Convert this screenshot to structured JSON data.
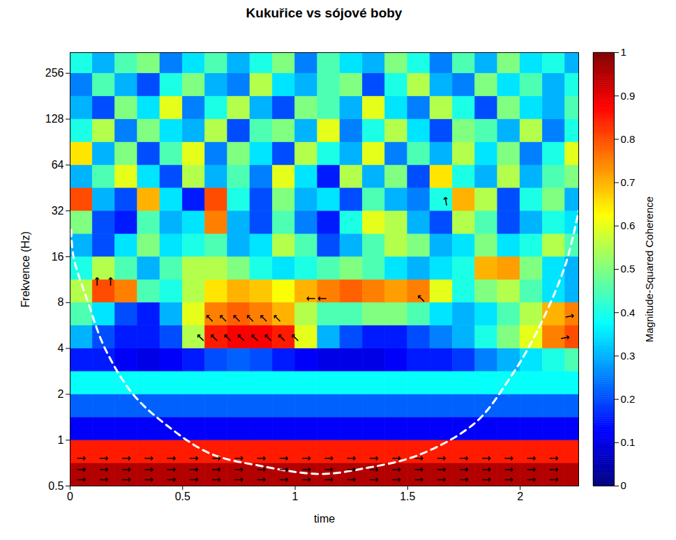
{
  "chart_data": {
    "type": "heatmap",
    "title": "Kukuřice vs sójové boby",
    "x_label": "time",
    "y_label": "Frekvence (Hz)",
    "log": "y",
    "grid": false,
    "xlim": [
      0,
      2.26
    ],
    "xticks": [
      0,
      0.5,
      1,
      1.5,
      2
    ],
    "ylim": [
      0.5,
      350
    ],
    "yticks": [
      0.5,
      1,
      2,
      4,
      8,
      16,
      32,
      64,
      128,
      256
    ],
    "colorbar": {
      "label": "Magnitude-Squared Coherence",
      "lim": [
        0,
        1
      ],
      "ticks": [
        0,
        0.1,
        0.2,
        0.3,
        0.4,
        0.5,
        0.6,
        0.7,
        0.8,
        0.9,
        1
      ]
    },
    "cells": {
      "x_edges": [
        0,
        0.1,
        0.2,
        0.3,
        0.4,
        0.5,
        0.6,
        0.7,
        0.8,
        0.9,
        1,
        1.1,
        1.2,
        1.3,
        1.4,
        1.5,
        1.6,
        1.7,
        1.8,
        1.9,
        2,
        2.1,
        2.2,
        2.3
      ],
      "y_edges": [
        0.5,
        0.707,
        1,
        1.414,
        2,
        2.83,
        4,
        5.66,
        8,
        11.3,
        16,
        22.6,
        32,
        45.3,
        64,
        90.5,
        128,
        181,
        256,
        362
      ],
      "values": [
        [
          0.95,
          0.95,
          0.95,
          0.95,
          0.95,
          0.95,
          0.95,
          0.95,
          0.95,
          0.95,
          0.95,
          0.95,
          0.95,
          0.95,
          0.95,
          0.95,
          0.95,
          0.95,
          0.95,
          0.95,
          0.95,
          0.95,
          0.95
        ],
        [
          0.85,
          0.85,
          0.85,
          0.85,
          0.85,
          0.85,
          0.85,
          0.85,
          0.85,
          0.85,
          0.85,
          0.85,
          0.85,
          0.85,
          0.85,
          0.85,
          0.85,
          0.85,
          0.85,
          0.85,
          0.85,
          0.85,
          0.85
        ],
        [
          0.12,
          0.12,
          0.12,
          0.12,
          0.12,
          0.12,
          0.12,
          0.12,
          0.12,
          0.12,
          0.12,
          0.12,
          0.12,
          0.12,
          0.12,
          0.12,
          0.12,
          0.12,
          0.12,
          0.12,
          0.12,
          0.12,
          0.12
        ],
        [
          0.22,
          0.22,
          0.22,
          0.22,
          0.22,
          0.22,
          0.22,
          0.22,
          0.22,
          0.22,
          0.22,
          0.22,
          0.22,
          0.22,
          0.22,
          0.22,
          0.22,
          0.22,
          0.22,
          0.22,
          0.22,
          0.22,
          0.22
        ],
        [
          0.38,
          0.38,
          0.38,
          0.38,
          0.38,
          0.38,
          0.38,
          0.38,
          0.38,
          0.38,
          0.38,
          0.38,
          0.38,
          0.38,
          0.38,
          0.38,
          0.38,
          0.38,
          0.38,
          0.38,
          0.38,
          0.38,
          0.38
        ],
        [
          0.15,
          0.15,
          0.12,
          0.1,
          0.12,
          0.15,
          0.2,
          0.22,
          0.2,
          0.15,
          0.12,
          0.1,
          0.1,
          0.1,
          0.12,
          0.15,
          0.15,
          0.18,
          0.25,
          0.3,
          0.35,
          0.4,
          0.45
        ],
        [
          0.3,
          0.2,
          0.15,
          0.15,
          0.2,
          0.55,
          0.85,
          0.88,
          0.88,
          0.85,
          0.6,
          0.3,
          0.2,
          0.15,
          0.15,
          0.2,
          0.25,
          0.3,
          0.4,
          0.5,
          0.6,
          0.75,
          0.8
        ],
        [
          0.45,
          0.35,
          0.2,
          0.15,
          0.3,
          0.6,
          0.75,
          0.78,
          0.75,
          0.7,
          0.55,
          0.45,
          0.45,
          0.5,
          0.5,
          0.45,
          0.35,
          0.3,
          0.35,
          0.45,
          0.55,
          0.7,
          0.75
        ],
        [
          0.55,
          0.8,
          0.75,
          0.45,
          0.4,
          0.55,
          0.65,
          0.7,
          0.68,
          0.62,
          0.7,
          0.75,
          0.78,
          0.75,
          0.72,
          0.75,
          0.6,
          0.4,
          0.5,
          0.55,
          0.45,
          0.35,
          0.3
        ],
        [
          0.4,
          0.55,
          0.45,
          0.3,
          0.45,
          0.55,
          0.55,
          0.5,
          0.4,
          0.35,
          0.4,
          0.45,
          0.5,
          0.45,
          0.35,
          0.3,
          0.35,
          0.4,
          0.7,
          0.72,
          0.5,
          0.35,
          0.3
        ],
        [
          0.3,
          0.2,
          0.35,
          0.5,
          0.35,
          0.4,
          0.45,
          0.3,
          0.35,
          0.55,
          0.45,
          0.2,
          0.3,
          0.45,
          0.55,
          0.5,
          0.3,
          0.35,
          0.5,
          0.35,
          0.4,
          0.55,
          0.45
        ],
        [
          0.5,
          0.2,
          0.15,
          0.45,
          0.3,
          0.35,
          0.75,
          0.3,
          0.2,
          0.45,
          0.25,
          0.15,
          0.4,
          0.6,
          0.55,
          0.3,
          0.2,
          0.55,
          0.45,
          0.2,
          0.3,
          0.4,
          0.35
        ],
        [
          0.8,
          0.3,
          0.2,
          0.7,
          0.35,
          0.15,
          0.8,
          0.4,
          0.2,
          0.5,
          0.3,
          0.35,
          0.2,
          0.45,
          0.3,
          0.25,
          0.4,
          0.7,
          0.55,
          0.2,
          0.4,
          0.5,
          0.3
        ],
        [
          0.3,
          0.45,
          0.6,
          0.35,
          0.2,
          0.55,
          0.3,
          0.45,
          0.25,
          0.6,
          0.35,
          0.15,
          0.55,
          0.3,
          0.5,
          0.2,
          0.65,
          0.4,
          0.3,
          0.55,
          0.3,
          0.45,
          0.5
        ],
        [
          0.65,
          0.3,
          0.5,
          0.2,
          0.45,
          0.6,
          0.25,
          0.5,
          0.35,
          0.2,
          0.55,
          0.4,
          0.3,
          0.6,
          0.25,
          0.45,
          0.3,
          0.55,
          0.35,
          0.5,
          0.25,
          0.4,
          0.6
        ],
        [
          0.4,
          0.55,
          0.25,
          0.5,
          0.35,
          0.3,
          0.55,
          0.2,
          0.45,
          0.5,
          0.3,
          0.6,
          0.25,
          0.4,
          0.55,
          0.35,
          0.2,
          0.5,
          0.45,
          0.3,
          0.55,
          0.25,
          0.4
        ],
        [
          0.3,
          0.2,
          0.5,
          0.35,
          0.6,
          0.25,
          0.4,
          0.55,
          0.3,
          0.2,
          0.5,
          0.45,
          0.3,
          0.6,
          0.35,
          0.25,
          0.55,
          0.4,
          0.2,
          0.5,
          0.35,
          0.3,
          0.45
        ],
        [
          0.25,
          0.45,
          0.3,
          0.2,
          0.4,
          0.5,
          0.3,
          0.25,
          0.55,
          0.35,
          0.3,
          0.45,
          0.5,
          0.2,
          0.4,
          0.55,
          0.3,
          0.25,
          0.5,
          0.35,
          0.45,
          0.3,
          0.4
        ],
        [
          0.4,
          0.3,
          0.45,
          0.5,
          0.25,
          0.35,
          0.45,
          0.3,
          0.4,
          0.5,
          0.25,
          0.45,
          0.35,
          0.3,
          0.5,
          0.4,
          0.25,
          0.45,
          0.3,
          0.5,
          0.35,
          0.4,
          0.3
        ]
      ]
    },
    "coi": {
      "x": [
        0.005,
        0.015,
        0.08,
        0.155,
        0.28,
        0.43,
        0.62,
        0.84,
        1.11,
        1.3,
        1.55,
        1.8,
        1.95,
        2.07,
        2.2,
        2.26
      ],
      "values": [
        24,
        16,
        8,
        4,
        2,
        1.25,
        0.82,
        0.68,
        0.6,
        0.65,
        0.8,
        1.3,
        2.5,
        5,
        14,
        32
      ],
      "color": "#ffffff",
      "line_style": "dashed"
    },
    "phase_arrows": [
      {
        "y": 0.55,
        "phase": 0,
        "x": [
          0.05,
          0.15,
          0.25,
          0.35,
          0.45,
          0.55,
          0.65,
          0.75,
          0.85,
          0.95,
          1.05,
          1.15,
          1.25,
          1.35,
          1.45,
          1.55,
          1.65,
          1.75,
          1.85,
          1.95,
          2.05,
          2.15
        ]
      },
      {
        "y": 0.64,
        "phase": 0,
        "x": [
          0.05,
          0.15,
          0.25,
          0.35,
          0.45,
          0.55,
          0.65,
          0.75,
          0.85,
          0.95,
          1.05,
          1.15,
          1.25,
          1.35,
          1.45,
          1.55,
          1.65,
          1.75,
          1.85,
          1.95,
          2.05,
          2.15
        ]
      },
      {
        "y": 0.76,
        "phase": 0,
        "x": [
          0.05,
          0.15,
          0.25,
          0.35,
          0.45,
          0.55,
          0.65,
          0.75,
          0.85,
          0.95,
          1.05,
          1.15,
          1.25,
          1.35,
          1.45,
          1.55,
          1.65,
          1.75,
          1.85,
          1.95,
          2.05,
          2.15
        ]
      },
      {
        "y": 4.7,
        "phase": 135,
        "x": [
          0.58,
          0.64,
          0.7,
          0.76,
          0.82,
          0.88,
          0.94,
          1.0
        ]
      },
      {
        "y": 6.3,
        "phase": 135,
        "x": [
          0.62,
          0.68,
          0.74,
          0.8,
          0.86,
          0.92
        ]
      },
      {
        "y": 11,
        "phase": 90,
        "x": [
          0.12,
          0.18
        ]
      },
      {
        "y": 8.5,
        "phase": 180,
        "x": [
          1.07,
          1.12
        ]
      },
      {
        "y": 8.5,
        "phase": 135,
        "x": [
          1.56
        ]
      },
      {
        "y": 4.7,
        "phase": 10,
        "x": [
          2.2
        ]
      },
      {
        "y": 6.5,
        "phase": 10,
        "x": [
          2.22
        ]
      },
      {
        "y": 37,
        "phase": 100,
        "x": [
          1.67
        ]
      }
    ]
  }
}
